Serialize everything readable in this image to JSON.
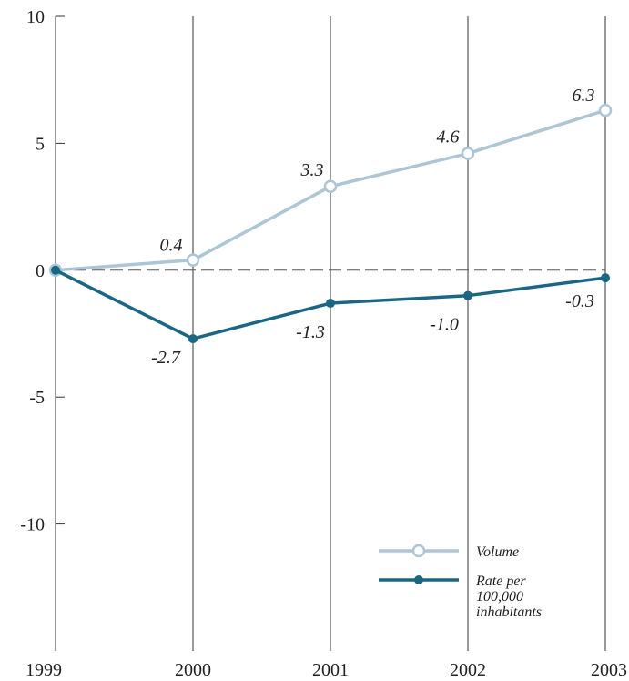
{
  "chart_data": {
    "type": "line",
    "x": [
      "1999",
      "2000",
      "2001",
      "2002",
      "2003"
    ],
    "ylim": [
      -15,
      10
    ],
    "yticks": [
      10,
      5,
      0,
      -5,
      -10
    ],
    "ytick_labels": [
      "10",
      "5",
      "0",
      "-5",
      "-10"
    ],
    "grid": "vertical",
    "zero_line": "dashed",
    "legend_position": "bottom-right",
    "series": [
      {
        "name": "Volume",
        "values": [
          0,
          0.4,
          3.3,
          4.6,
          6.3
        ],
        "labels": [
          "",
          "0.4",
          "3.3",
          "4.6",
          "6.3"
        ],
        "color": "#adc6d6",
        "marker": "open-circle"
      },
      {
        "name": "Rate per 100,000 inhabitants",
        "name_lines": [
          "Rate per",
          "100,000",
          "inhabitants"
        ],
        "values": [
          0,
          -2.7,
          -1.3,
          -1.0,
          -0.3
        ],
        "labels": [
          "",
          "-2.7",
          "-1.3",
          "-1.0",
          "-0.3"
        ],
        "color": "#1a6784",
        "marker": "filled-circle"
      }
    ]
  }
}
